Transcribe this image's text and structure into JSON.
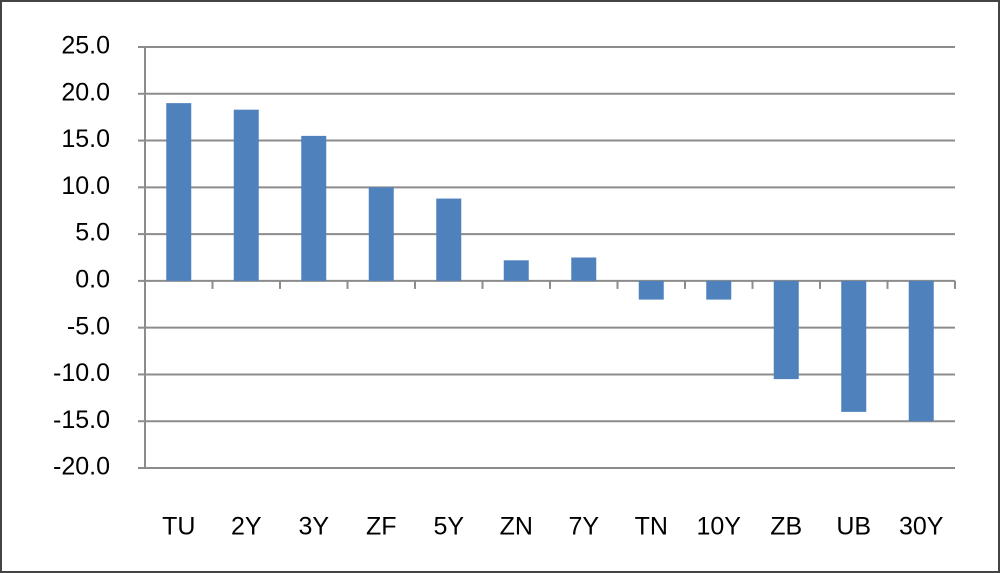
{
  "chart_data": {
    "type": "bar",
    "categories": [
      "TU",
      "2Y",
      "3Y",
      "ZF",
      "5Y",
      "ZN",
      "7Y",
      "TN",
      "10Y",
      "ZB",
      "UB",
      "30Y"
    ],
    "values": [
      19.0,
      18.3,
      15.5,
      10.0,
      8.8,
      2.2,
      2.5,
      -2.0,
      -2.0,
      -10.5,
      -14.0,
      -15.0
    ],
    "color": "#4f81bd",
    "ylim": [
      -20,
      25
    ],
    "yticks": [
      {
        "value": -20,
        "label": "-20.0"
      },
      {
        "value": -15,
        "label": "-15.0"
      },
      {
        "value": -10,
        "label": "-10.0"
      },
      {
        "value": -5,
        "label": "-5.0"
      },
      {
        "value": 0,
        "label": "0.0"
      },
      {
        "value": 5,
        "label": "5.0"
      },
      {
        "value": 10,
        "label": "10.0"
      },
      {
        "value": 15,
        "label": "15.0"
      },
      {
        "value": 20,
        "label": "20.0"
      },
      {
        "value": 25,
        "label": "25.0"
      }
    ],
    "grid": true
  }
}
